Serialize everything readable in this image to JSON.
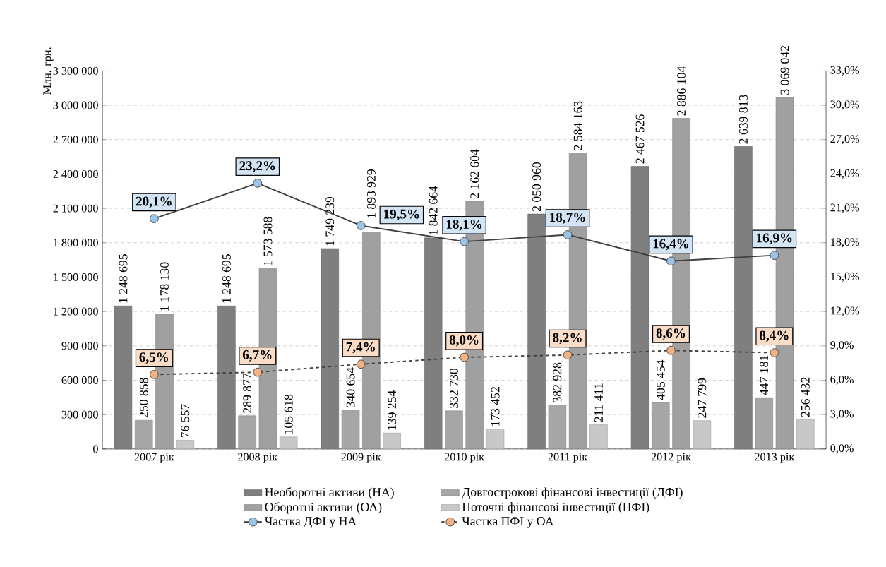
{
  "chart_data": {
    "type": "bar",
    "ylabel": "Млн. грн.",
    "categories": [
      "2007 рік",
      "2008 рік",
      "2009 рік",
      "2010 рік",
      "2011 рік",
      "2012 рік",
      "2013 рік"
    ],
    "series": [
      {
        "name": "Необоротні активи (НА)",
        "color": "#7f7f7f",
        "values": [
          1248695,
          1248695,
          1749239,
          1842664,
          2050960,
          2467526,
          2639813
        ],
        "value_labels": [
          "1 248 695",
          "1 248 695",
          "1 749 239",
          "1 842 664",
          "2 050 960",
          "2 467 526",
          "2 639 813"
        ]
      },
      {
        "name": "Довгострокові фінансові інвестиції (ДФІ)",
        "color": "#a6a6a6",
        "values": [
          250858,
          289877,
          340654,
          332730,
          382928,
          405454,
          447181
        ],
        "value_labels": [
          "250 858",
          "289 877",
          "340 654",
          "332 730",
          "382 928",
          "405 454",
          "447 181"
        ]
      },
      {
        "name": "Оборотні активи (ОА)",
        "color": "#a0a0a0",
        "values": [
          1178130,
          1573588,
          1893929,
          2162604,
          2584163,
          2886104,
          3069042
        ],
        "value_labels": [
          "1 178 130",
          "1 573 588",
          "1 893 929",
          "2 162 604",
          "2 584 163",
          "2 886 104",
          "3 069 042"
        ]
      },
      {
        "name": "Поточні фінансові інвестиції (ПФІ)",
        "color": "#c8c8c8",
        "values": [
          76557,
          105618,
          139254,
          173452,
          211411,
          247799,
          256432
        ],
        "value_labels": [
          "76 557",
          "105 618",
          "139 254",
          "173 452",
          "211 411",
          "247 799",
          "256 432"
        ]
      },
      {
        "name": "Частка ДФІ у НА",
        "type": "line",
        "axis": "y2",
        "color": "#9dc3e6",
        "marker": "circle",
        "line_style": "solid",
        "values": [
          20.1,
          23.2,
          19.5,
          18.1,
          18.7,
          16.4,
          16.9
        ],
        "value_labels": [
          "20,1%",
          "23,2%",
          "19,5%",
          "18,1%",
          "18,7%",
          "16,4%",
          "16,9%"
        ]
      },
      {
        "name": "Частка ПФІ у ОА",
        "type": "line",
        "axis": "y2",
        "color": "#f4b183",
        "marker": "circle",
        "line_style": "dashed",
        "values": [
          6.5,
          6.7,
          7.4,
          8.0,
          8.2,
          8.6,
          8.4
        ],
        "value_labels": [
          "6,5%",
          "6,7%",
          "7,4%",
          "8,0%",
          "8,2%",
          "8,6%",
          "8,4%"
        ]
      }
    ],
    "ylim": [
      0,
      3300000
    ],
    "yticks": [
      {
        "value": 0,
        "label": "0"
      },
      {
        "value": 300000,
        "label": "300 000"
      },
      {
        "value": 600000,
        "label": "600 000"
      },
      {
        "value": 900000,
        "label": "900 000"
      },
      {
        "value": 1200000,
        "label": "1 200 000"
      },
      {
        "value": 1500000,
        "label": "1 500 000"
      },
      {
        "value": 1800000,
        "label": "1 800 000"
      },
      {
        "value": 2100000,
        "label": "2 100 000"
      },
      {
        "value": 2400000,
        "label": "2 400 000"
      },
      {
        "value": 2700000,
        "label": "2 700 000"
      },
      {
        "value": 3000000,
        "label": "3 000 000"
      },
      {
        "value": 3300000,
        "label": "3 300 000"
      }
    ],
    "y2lim": [
      0,
      33
    ],
    "y2ticks": [
      {
        "value": 0,
        "label": "0,0%"
      },
      {
        "value": 3,
        "label": "3,0%"
      },
      {
        "value": 6,
        "label": "6,0%"
      },
      {
        "value": 9,
        "label": "9,0%"
      },
      {
        "value": 12,
        "label": "12,0%"
      },
      {
        "value": 15,
        "label": "15,0%"
      },
      {
        "value": 18,
        "label": "18,0%"
      },
      {
        "value": 21,
        "label": "21,0%"
      },
      {
        "value": 24,
        "label": "24,0%"
      },
      {
        "value": 27,
        "label": "27,0%"
      },
      {
        "value": 30,
        "label": "30,0%"
      },
      {
        "value": 33,
        "label": "33,0%"
      }
    ],
    "grid": "y",
    "legend": "bottom"
  }
}
